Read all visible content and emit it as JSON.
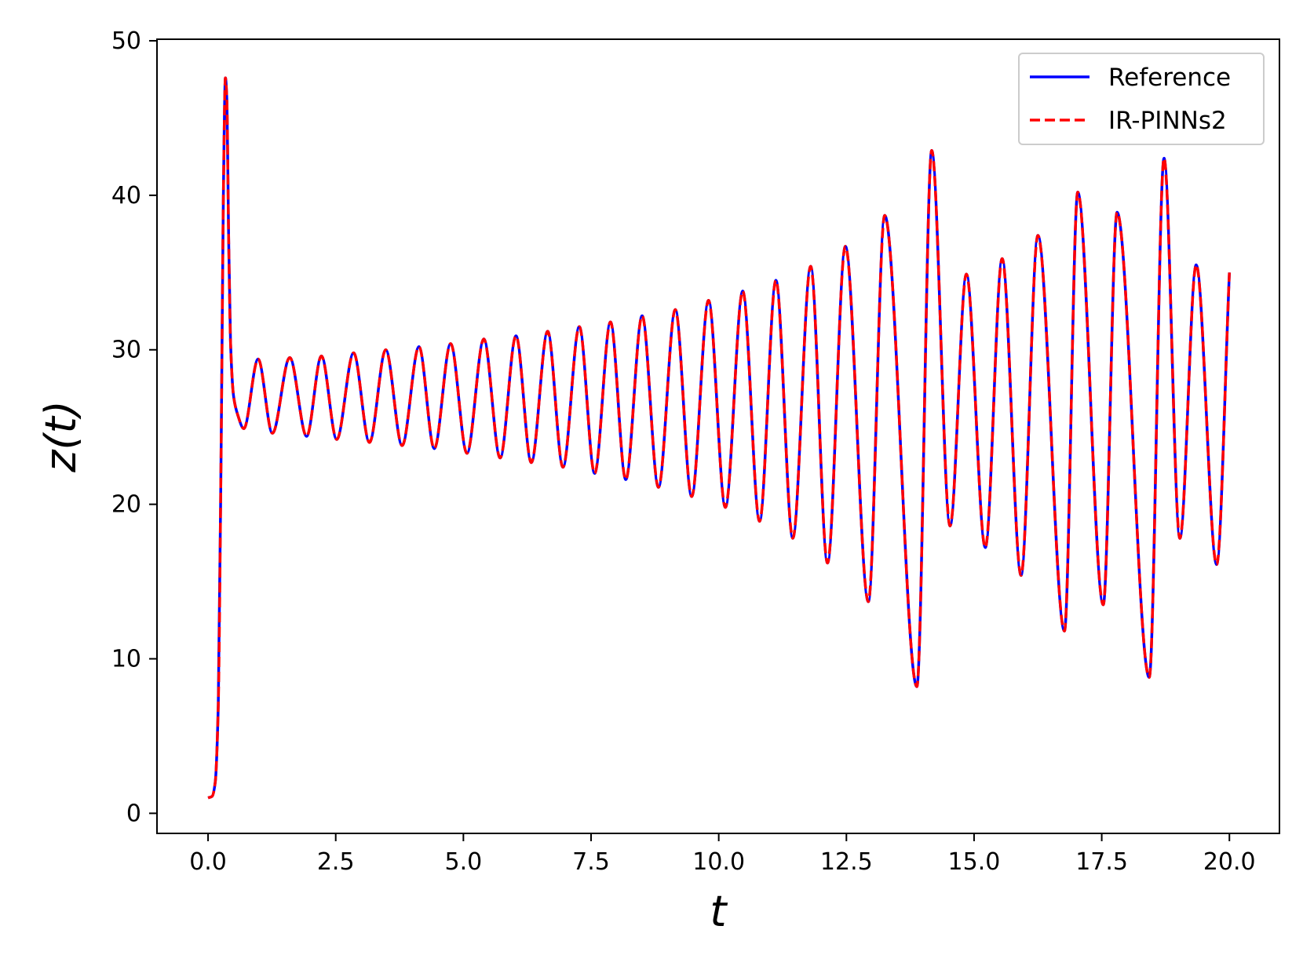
{
  "chart_data": {
    "type": "line",
    "title": "",
    "xlabel": "t",
    "ylabel": "z(t)",
    "xlim": [
      -1.0,
      20.98
    ],
    "ylim": [
      -1.3,
      50.1
    ],
    "xticks": [
      0.0,
      2.5,
      5.0,
      7.5,
      10.0,
      12.5,
      15.0,
      17.5,
      20.0
    ],
    "xtick_labels": [
      "0.0",
      "2.5",
      "5.0",
      "7.5",
      "10.0",
      "12.5",
      "15.0",
      "17.5",
      "20.0"
    ],
    "yticks": [
      0,
      10,
      20,
      30,
      40,
      50
    ],
    "ytick_labels": [
      "0",
      "10",
      "20",
      "30",
      "40",
      "50"
    ],
    "grid": false,
    "legend_position": "top-right",
    "x": [
      0.0,
      0.08,
      0.14,
      0.2,
      0.26,
      0.3,
      0.34,
      0.37,
      0.4,
      0.44,
      0.5,
      0.58,
      0.7,
      0.98,
      1.26,
      1.6,
      1.93,
      2.22,
      2.52,
      2.85,
      3.16,
      3.48,
      3.8,
      4.13,
      4.43,
      4.75,
      5.07,
      5.4,
      5.72,
      6.03,
      6.33,
      6.65,
      6.95,
      7.27,
      7.57,
      7.88,
      8.18,
      8.5,
      8.82,
      9.15,
      9.47,
      9.8,
      10.13,
      10.47,
      10.8,
      11.12,
      11.45,
      11.8,
      12.13,
      12.48,
      12.93,
      13.25,
      13.88,
      14.17,
      14.53,
      14.85,
      15.22,
      15.55,
      15.92,
      16.25,
      16.77,
      17.03,
      17.53,
      17.8,
      18.43,
      18.72,
      19.03,
      19.35,
      19.75,
      20.0
    ],
    "series": [
      {
        "name": "Reference",
        "color": "#0000ff",
        "style": "solid",
        "values": [
          1.0,
          1.1,
          2.0,
          7.0,
          25.0,
          40.0,
          47.6,
          46.0,
          38.0,
          30.5,
          27.0,
          25.8,
          24.9,
          29.4,
          24.6,
          29.5,
          24.4,
          29.6,
          24.2,
          29.8,
          24.0,
          30.0,
          23.8,
          30.2,
          23.6,
          30.4,
          23.3,
          30.7,
          23.0,
          30.9,
          22.7,
          31.2,
          22.4,
          31.5,
          22.0,
          31.8,
          21.6,
          32.2,
          21.1,
          32.6,
          20.5,
          33.2,
          19.8,
          33.8,
          18.9,
          34.5,
          17.8,
          35.4,
          16.2,
          36.7,
          13.7,
          38.7,
          8.2,
          42.9,
          18.6,
          34.9,
          17.2,
          35.9,
          15.4,
          37.4,
          11.8,
          40.2,
          13.5,
          38.9,
          8.8,
          42.4,
          17.8,
          35.5,
          16.1,
          35.0
        ]
      },
      {
        "name": "IR-PINNs2",
        "color": "#ff0000",
        "style": "dashed",
        "values": [
          1.0,
          1.1,
          2.0,
          7.0,
          25.0,
          40.0,
          47.6,
          46.0,
          38.0,
          30.5,
          27.0,
          25.8,
          24.9,
          29.4,
          24.6,
          29.5,
          24.4,
          29.6,
          24.2,
          29.8,
          24.0,
          30.0,
          23.8,
          30.2,
          23.6,
          30.4,
          23.3,
          30.7,
          23.0,
          30.9,
          22.7,
          31.2,
          22.4,
          31.5,
          22.0,
          31.8,
          21.6,
          32.2,
          21.1,
          32.6,
          20.5,
          33.2,
          19.8,
          33.8,
          18.9,
          34.5,
          17.8,
          35.4,
          16.2,
          36.7,
          13.7,
          38.7,
          8.2,
          42.9,
          18.6,
          34.9,
          17.2,
          35.9,
          15.4,
          37.4,
          11.8,
          40.2,
          13.5,
          38.9,
          8.8,
          42.4,
          17.8,
          35.5,
          16.1,
          35.0
        ]
      }
    ]
  }
}
